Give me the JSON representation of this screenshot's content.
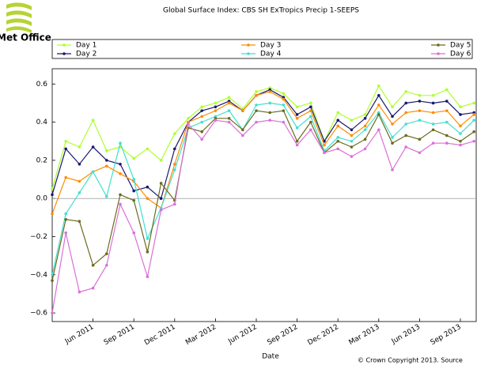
{
  "chart_data": {
    "type": "line",
    "title": "Global Surface Index: CBS SH ExTropics Precip 1-SEEPS",
    "logo": "Met Office",
    "xlabel": "Date",
    "footer": "© Crown Copyright 2013. Source",
    "categories": [
      null,
      null,
      null,
      "Jun 2011",
      null,
      null,
      "Sep 2011",
      null,
      null,
      "Dec 2011",
      null,
      null,
      "Mar 2012",
      null,
      null,
      "Jun 2012",
      null,
      null,
      "Sep 2012",
      null,
      null,
      "Dec 2012",
      null,
      null,
      "Mar 2013",
      null,
      null,
      "Jun 2013",
      null,
      null,
      "Sep 2013",
      null
    ],
    "ylim": [
      -0.645,
      0.68
    ],
    "yticks": [
      {
        "value": -0.6,
        "label": "−0.6"
      },
      {
        "value": -0.4,
        "label": "−0.4"
      },
      {
        "value": -0.2,
        "label": "−0.2"
      },
      {
        "value": 0,
        "label": "0.0"
      },
      0.2,
      0.4,
      0.6
    ],
    "legend": "top",
    "series": [
      {
        "name": "Day 1",
        "color": "#adff2f",
        "values": [
          0.05,
          0.3,
          0.27,
          0.41,
          0.25,
          0.27,
          0.21,
          0.26,
          0.2,
          0.34,
          0.42,
          0.48,
          0.5,
          0.53,
          0.47,
          0.56,
          0.58,
          0.55,
          0.48,
          0.5,
          0.3,
          0.45,
          0.41,
          0.44,
          0.59,
          0.48,
          0.56,
          0.54,
          0.54,
          0.57,
          0.48,
          0.5
        ]
      },
      {
        "name": "Day 2",
        "color": "#191970",
        "values": [
          0.02,
          0.26,
          0.18,
          0.27,
          0.2,
          0.18,
          0.04,
          0.06,
          0.0,
          0.26,
          0.4,
          0.46,
          0.48,
          0.51,
          0.46,
          0.54,
          0.57,
          0.53,
          0.44,
          0.48,
          0.3,
          0.41,
          0.36,
          0.42,
          0.54,
          0.43,
          0.5,
          0.51,
          0.5,
          0.51,
          0.44,
          0.45
        ]
      },
      {
        "name": "Day 3",
        "color": "#ff8c00",
        "values": [
          -0.08,
          0.11,
          0.09,
          0.14,
          0.17,
          0.13,
          0.09,
          0.0,
          -0.05,
          0.18,
          0.4,
          0.43,
          0.46,
          0.5,
          0.46,
          0.54,
          0.56,
          0.52,
          0.42,
          0.46,
          0.28,
          0.38,
          0.33,
          0.38,
          0.49,
          0.39,
          0.45,
          0.46,
          0.45,
          0.46,
          0.38,
          0.44
        ]
      },
      {
        "name": "Day 4",
        "color": "#40e0d0",
        "values": [
          -0.4,
          -0.08,
          0.03,
          0.14,
          0.01,
          0.29,
          0.1,
          -0.21,
          -0.05,
          0.15,
          0.37,
          0.4,
          0.43,
          0.46,
          0.36,
          0.49,
          0.5,
          0.49,
          0.37,
          0.43,
          0.25,
          0.32,
          0.3,
          0.36,
          0.45,
          0.32,
          0.39,
          0.41,
          0.39,
          0.4,
          0.34,
          0.41
        ]
      },
      {
        "name": "Day 5",
        "color": "#6b6b1f",
        "values": [
          -0.43,
          -0.11,
          -0.12,
          -0.35,
          -0.29,
          0.02,
          -0.01,
          -0.28,
          0.08,
          -0.01,
          0.37,
          0.35,
          0.42,
          0.42,
          0.36,
          0.46,
          0.45,
          0.46,
          0.3,
          0.4,
          0.24,
          0.3,
          0.27,
          0.31,
          0.44,
          0.29,
          0.33,
          0.31,
          0.36,
          0.33,
          0.3,
          0.35
        ]
      },
      {
        "name": "Day 6",
        "color": "#da70d6",
        "values": [
          -0.6,
          -0.18,
          -0.49,
          -0.47,
          -0.35,
          -0.03,
          -0.18,
          -0.41,
          -0.06,
          -0.03,
          0.39,
          0.31,
          0.41,
          0.4,
          0.33,
          0.4,
          0.41,
          0.4,
          0.28,
          0.36,
          0.24,
          0.26,
          0.22,
          0.26,
          0.36,
          0.15,
          0.27,
          0.24,
          0.29,
          0.29,
          0.28,
          0.3
        ]
      }
    ]
  }
}
